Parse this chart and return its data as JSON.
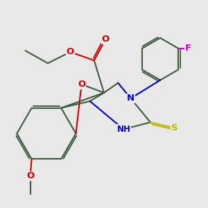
{
  "bg_color": "#e8e8e8",
  "bond_color": "#3d5a3d",
  "bond_width": 1.5,
  "atom_colors": {
    "O": "#cc0000",
    "N": "#0000bb",
    "S": "#b8b800",
    "F": "#cc00cc",
    "C": "#3d5a3d"
  },
  "dbs": 0.06,
  "fs": 9.5
}
